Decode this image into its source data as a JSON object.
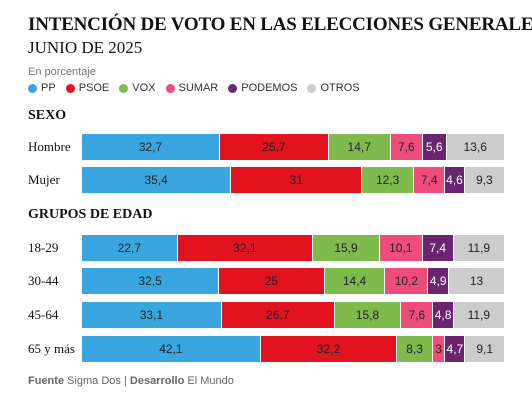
{
  "title": "INTENCIÓN DE VOTO EN LAS ELECCIONES GENERALES",
  "subtitle": "JUNIO DE 2025",
  "unit_label": "En porcentaje",
  "legend": [
    {
      "name": "PP",
      "color": "#3aa6e0"
    },
    {
      "name": "PSOE",
      "color": "#e2121f"
    },
    {
      "name": "VOX",
      "color": "#7fba4d"
    },
    {
      "name": "SUMAR",
      "color": "#ee4d7b"
    },
    {
      "name": "PODEMOS",
      "color": "#6b2570"
    },
    {
      "name": "OTROS",
      "color": "#cccccc"
    }
  ],
  "chart_data": {
    "type": "bar",
    "stacked": true,
    "orientation": "horizontal",
    "normalized_percent": true,
    "series_names": [
      "PP",
      "PSOE",
      "VOX",
      "SUMAR",
      "PODEMOS",
      "OTROS"
    ],
    "groups": [
      {
        "title": "SEXO",
        "rows": [
          {
            "label": "Hombre",
            "values": [
              32.7,
              25.7,
              14.7,
              7.6,
              5.6,
              13.6
            ],
            "value_labels": [
              "32,7",
              "25,7",
              "14,7",
              "7,6",
              "5,6",
              "13,6"
            ]
          },
          {
            "label": "Mujer",
            "values": [
              35.4,
              31,
              12.3,
              7.4,
              4.6,
              9.3
            ],
            "value_labels": [
              "35,4",
              "31",
              "12,3",
              "7,4",
              "4,6",
              "9,3"
            ]
          }
        ]
      },
      {
        "title": "GRUPOS DE EDAD",
        "rows": [
          {
            "label": "18-29",
            "values": [
              22.7,
              32.1,
              15.9,
              10.1,
              7.4,
              11.9
            ],
            "value_labels": [
              "22,7",
              "32,1",
              "15,9",
              "10,1",
              "7,4",
              "11,9"
            ]
          },
          {
            "label": "30-44",
            "values": [
              32.5,
              25,
              14.4,
              10.2,
              4.9,
              13
            ],
            "value_labels": [
              "32,5",
              "25",
              "14,4",
              "10,2",
              "4,9",
              "13"
            ]
          },
          {
            "label": "45-64",
            "values": [
              33.1,
              26.7,
              15.8,
              7.6,
              4.8,
              11.9
            ],
            "value_labels": [
              "33,1",
              "26,7",
              "15,8",
              "7,6",
              "4,8",
              "11,9"
            ]
          },
          {
            "label": "65 y más",
            "values": [
              42.1,
              32.2,
              8.3,
              3,
              4.7,
              9.1
            ],
            "value_labels": [
              "42,1",
              "32,2",
              "8,3",
              "3",
              "4,7",
              "9,1"
            ]
          }
        ]
      }
    ]
  },
  "footer": {
    "source_label": "Fuente",
    "source": "Sigma Dos",
    "separator": "|",
    "dev_label": "Desarrollo",
    "dev": "El Mundo"
  }
}
